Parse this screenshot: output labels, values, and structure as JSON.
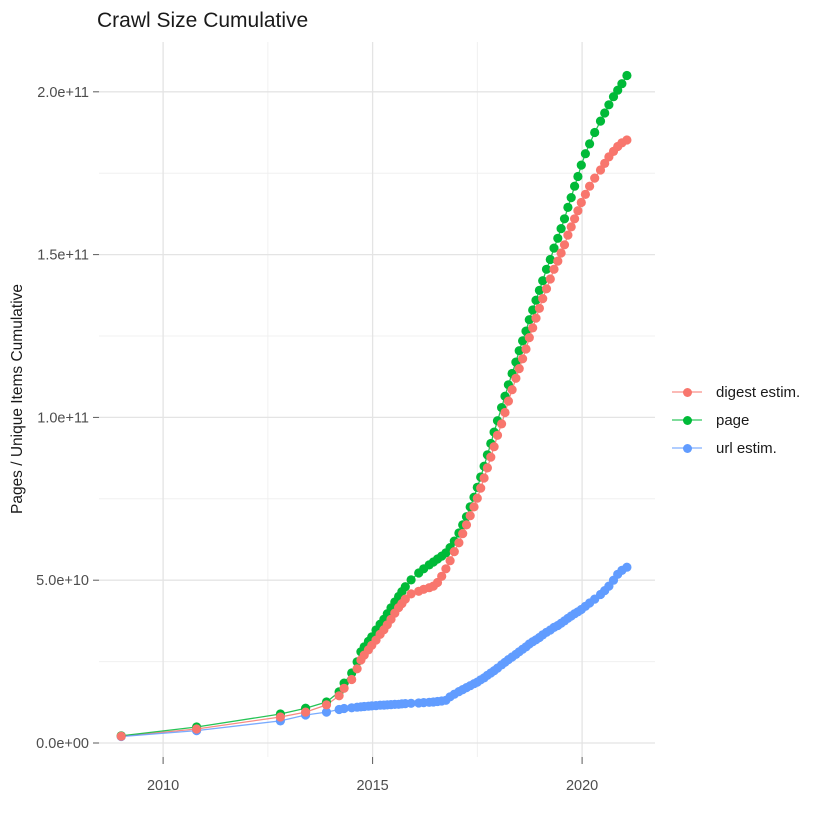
{
  "chart_data": {
    "type": "line",
    "title": "Crawl Size Cumulative",
    "xlabel": "",
    "ylabel": "Pages / Unique Items Cumulative",
    "legend_position": "right",
    "grid": true,
    "background": "#ffffff",
    "gridline_major_color": "#e4e4e4",
    "gridline_minor_color": "#f0f0f0",
    "tick_label_color": "#4d4d4d",
    "text_color": "#1a1a1a",
    "xlim": [
      2008.47,
      2021.74
    ],
    "ylim_e9": [
      -4.3,
      215.3
    ],
    "x_ticks": [
      {
        "value": 2010,
        "label": "2010"
      },
      {
        "value": 2015,
        "label": "2015"
      },
      {
        "value": 2020,
        "label": "2020"
      }
    ],
    "x_minor": [
      2012.5,
      2017.5
    ],
    "y_ticks": [
      {
        "value_e9": 0,
        "label": "0.0e+00"
      },
      {
        "value_e9": 50,
        "label": "5.0e+10"
      },
      {
        "value_e9": 100,
        "label": "1.0e+11"
      },
      {
        "value_e9": 150,
        "label": "1.5e+11"
      },
      {
        "value_e9": 200,
        "label": "2.0e+11"
      }
    ],
    "y_minor_e9": [
      25,
      75,
      125,
      175
    ],
    "x_unit": "crawl date (year)",
    "y_unit": "cumulative count (billions, 1e9)",
    "x": [
      2009.0,
      2010.8,
      2012.8,
      2013.4,
      2013.9,
      2014.2,
      2014.32,
      2014.5,
      2014.63,
      2014.72,
      2014.8,
      2014.9,
      2014.98,
      2015.08,
      2015.18,
      2015.27,
      2015.35,
      2015.44,
      2015.53,
      2015.62,
      2015.7,
      2015.78,
      2015.92,
      2016.1,
      2016.22,
      2016.35,
      2016.45,
      2016.55,
      2016.65,
      2016.75,
      2016.85,
      2016.95,
      2017.06,
      2017.15,
      2017.24,
      2017.33,
      2017.42,
      2017.5,
      2017.58,
      2017.66,
      2017.74,
      2017.82,
      2017.9,
      2017.98,
      2018.08,
      2018.16,
      2018.24,
      2018.33,
      2018.42,
      2018.5,
      2018.58,
      2018.66,
      2018.74,
      2018.82,
      2018.9,
      2018.98,
      2019.06,
      2019.15,
      2019.24,
      2019.33,
      2019.42,
      2019.5,
      2019.58,
      2019.66,
      2019.74,
      2019.82,
      2019.9,
      2019.98,
      2020.08,
      2020.18,
      2020.3,
      2020.44,
      2020.54,
      2020.64,
      2020.75,
      2020.85,
      2020.95,
      2021.07
    ],
    "series": [
      {
        "name": "digest estim.",
        "color": "#F8766D",
        "y_e9": [
          2.1,
          4.3,
          8.0,
          9.5,
          11.7,
          14.5,
          16.8,
          19.5,
          22.8,
          25.5,
          27.0,
          28.6,
          30.0,
          31.6,
          33.4,
          34.8,
          36.3,
          38.0,
          39.9,
          41.6,
          42.8,
          44.2,
          45.8,
          46.6,
          47.2,
          47.7,
          48.2,
          49.3,
          51.2,
          53.5,
          56.0,
          58.8,
          61.5,
          64.3,
          67.0,
          69.8,
          72.5,
          75.2,
          78.3,
          81.4,
          84.5,
          87.8,
          91.0,
          94.5,
          98.0,
          101.5,
          105.0,
          108.5,
          112.0,
          115.0,
          118.0,
          121.0,
          124.5,
          127.5,
          130.5,
          133.5,
          136.5,
          139.5,
          142.5,
          145.5,
          148.0,
          150.5,
          153.0,
          156.0,
          158.5,
          161.0,
          163.5,
          166.0,
          168.5,
          171.0,
          173.5,
          176.0,
          178.0,
          180.0,
          181.7,
          183.2,
          184.3,
          185.2
        ]
      },
      {
        "name": "page",
        "color": "#00BA38",
        "y_e9": [
          2.2,
          4.9,
          8.9,
          10.7,
          12.6,
          15.7,
          18.4,
          21.5,
          24.9,
          28.0,
          29.5,
          31.2,
          32.6,
          34.7,
          36.5,
          38.0,
          39.7,
          41.5,
          43.3,
          45.0,
          46.5,
          48.0,
          50.1,
          52.2,
          53.5,
          54.7,
          55.6,
          56.5,
          57.4,
          58.4,
          60.0,
          62.0,
          64.5,
          67.0,
          69.5,
          72.5,
          75.5,
          78.5,
          81.7,
          85.0,
          88.5,
          92.0,
          95.5,
          99.0,
          103.0,
          106.5,
          110.0,
          113.5,
          117.0,
          120.5,
          123.5,
          126.5,
          130.0,
          133.0,
          136.0,
          139.0,
          142.0,
          145.5,
          148.5,
          152.0,
          155.0,
          158.0,
          161.0,
          164.5,
          167.5,
          171.0,
          174.0,
          177.5,
          181.0,
          184.0,
          187.5,
          191.0,
          193.5,
          196.0,
          198.5,
          200.5,
          202.5,
          205.0
        ]
      },
      {
        "name": "url estim.",
        "color": "#619CFF",
        "y_e9": [
          2.0,
          3.8,
          6.8,
          8.6,
          9.5,
          10.3,
          10.6,
          10.8,
          11.0,
          11.1,
          11.2,
          11.3,
          11.4,
          11.5,
          11.6,
          11.65,
          11.7,
          11.8,
          11.85,
          11.9,
          12.0,
          12.1,
          12.2,
          12.3,
          12.4,
          12.5,
          12.6,
          12.75,
          12.9,
          13.1,
          14.2,
          15.0,
          15.8,
          16.4,
          17.0,
          17.6,
          18.2,
          18.7,
          19.4,
          20.0,
          20.8,
          21.5,
          22.2,
          23.0,
          24.0,
          24.8,
          25.6,
          26.4,
          27.2,
          28.0,
          28.8,
          29.5,
          30.4,
          31.1,
          31.7,
          32.4,
          33.2,
          34.0,
          34.7,
          35.5,
          36.1,
          36.8,
          37.5,
          38.3,
          39.0,
          39.7,
          40.3,
          41.0,
          42.0,
          43.0,
          44.2,
          45.6,
          46.8,
          48.2,
          50.0,
          51.8,
          53.0,
          54.0
        ]
      }
    ]
  }
}
